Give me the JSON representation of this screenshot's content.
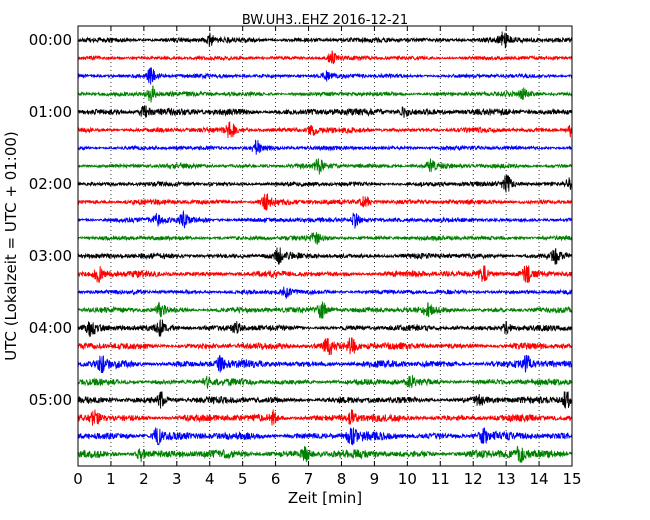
{
  "chart_data": {
    "type": "line",
    "title": "BW.UH3..EHZ 2016-12-21",
    "xlabel": "Zeit  [min]",
    "ylabel": "UTC (Lokalzeit = UTC + 01:00)",
    "xlim": [
      0,
      15
    ],
    "x_ticks": [
      "0",
      "1",
      "2",
      "3",
      "4",
      "5",
      "6",
      "7",
      "8",
      "9",
      "10",
      "11",
      "12",
      "13",
      "14",
      "15"
    ],
    "y_tick_labels": [
      "00:00",
      "01:00",
      "02:00",
      "03:00",
      "04:00",
      "05:00"
    ],
    "grid": "vertical-dotted",
    "minutes_per_trace": 15,
    "trace_count": 24,
    "color_cycle": [
      "#000000",
      "#ff0000",
      "#0000ff",
      "#008000"
    ],
    "traces": [
      {
        "start": "00:00",
        "amplitude": 0.35,
        "events": [
          [
            4.0,
            0.8
          ],
          [
            12.9,
            1.3
          ]
        ]
      },
      {
        "start": "00:15",
        "amplitude": 0.25,
        "events": [
          [
            7.7,
            0.9
          ]
        ]
      },
      {
        "start": "00:30",
        "amplitude": 0.25,
        "events": [
          [
            2.2,
            1.2
          ],
          [
            7.5,
            0.6
          ]
        ]
      },
      {
        "start": "00:45",
        "amplitude": 0.3,
        "events": [
          [
            2.2,
            1.4
          ],
          [
            13.5,
            0.7
          ]
        ]
      },
      {
        "start": "01:00",
        "amplitude": 0.55,
        "events": [
          [
            2.0,
            1.0
          ],
          [
            9.9,
            0.8
          ]
        ]
      },
      {
        "start": "01:15",
        "amplitude": 0.35,
        "events": [
          [
            4.6,
            1.5
          ],
          [
            7.1,
            1.0
          ],
          [
            15.0,
            1.2
          ]
        ]
      },
      {
        "start": "01:30",
        "amplitude": 0.25,
        "events": [
          [
            5.4,
            1.1
          ]
        ]
      },
      {
        "start": "01:45",
        "amplitude": 0.3,
        "events": [
          [
            7.3,
            0.9
          ],
          [
            10.7,
            0.8
          ]
        ]
      },
      {
        "start": "02:00",
        "amplitude": 0.3,
        "events": [
          [
            13.0,
            1.4
          ],
          [
            14.9,
            0.7
          ]
        ]
      },
      {
        "start": "02:15",
        "amplitude": 0.35,
        "events": [
          [
            5.7,
            1.3
          ],
          [
            8.7,
            1.1
          ]
        ]
      },
      {
        "start": "02:30",
        "amplitude": 0.3,
        "events": [
          [
            2.4,
            0.9
          ],
          [
            3.2,
            0.9
          ],
          [
            8.4,
            1.1
          ]
        ]
      },
      {
        "start": "02:45",
        "amplitude": 0.3,
        "events": [
          [
            7.2,
            0.9
          ]
        ]
      },
      {
        "start": "03:00",
        "amplitude": 0.4,
        "events": [
          [
            6.1,
            1.2
          ],
          [
            14.5,
            1.0
          ]
        ]
      },
      {
        "start": "03:15",
        "amplitude": 0.45,
        "events": [
          [
            0.6,
            1.3
          ],
          [
            12.3,
            1.3
          ],
          [
            13.6,
            1.4
          ]
        ]
      },
      {
        "start": "03:30",
        "amplitude": 0.3,
        "events": [
          [
            6.3,
            0.8
          ]
        ]
      },
      {
        "start": "03:45",
        "amplitude": 0.4,
        "events": [
          [
            2.5,
            1.0
          ],
          [
            7.4,
            1.5
          ],
          [
            10.6,
            0.7
          ]
        ]
      },
      {
        "start": "04:00",
        "amplitude": 0.4,
        "events": [
          [
            0.4,
            1.1
          ],
          [
            2.5,
            1.3
          ],
          [
            4.8,
            0.8
          ],
          [
            13.0,
            0.9
          ]
        ]
      },
      {
        "start": "04:15",
        "amplitude": 0.5,
        "events": [
          [
            7.6,
            1.5
          ],
          [
            8.3,
            1.5
          ]
        ]
      },
      {
        "start": "04:30",
        "amplitude": 0.55,
        "events": [
          [
            0.7,
            1.2
          ],
          [
            4.3,
            1.0
          ],
          [
            13.6,
            1.2
          ]
        ]
      },
      {
        "start": "04:45",
        "amplitude": 0.45,
        "events": [
          [
            3.9,
            0.7
          ],
          [
            10.1,
            0.7
          ]
        ]
      },
      {
        "start": "05:00",
        "amplitude": 0.5,
        "events": [
          [
            2.5,
            1.1
          ],
          [
            12.2,
            1.0
          ],
          [
            14.8,
            1.5
          ]
        ]
      },
      {
        "start": "05:15",
        "amplitude": 0.55,
        "events": [
          [
            0.5,
            1.1
          ],
          [
            5.9,
            0.8
          ],
          [
            8.3,
            0.9
          ]
        ]
      },
      {
        "start": "05:30",
        "amplitude": 0.6,
        "events": [
          [
            2.4,
            1.4
          ],
          [
            8.3,
            1.4
          ],
          [
            12.3,
            1.0
          ]
        ]
      },
      {
        "start": "05:45",
        "amplitude": 0.65,
        "events": [
          [
            1.9,
            0.9
          ],
          [
            6.9,
            0.9
          ],
          [
            13.4,
            1.1
          ]
        ]
      }
    ]
  }
}
